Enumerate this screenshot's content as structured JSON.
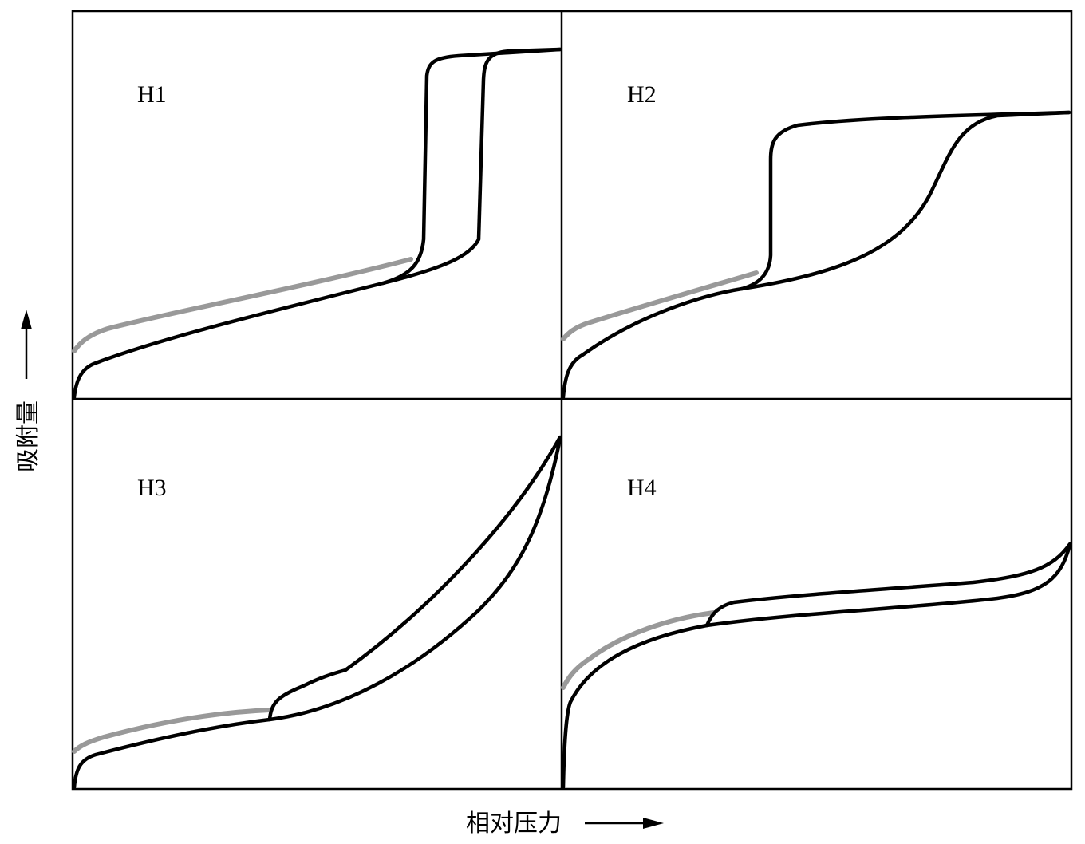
{
  "panels": [
    {
      "id": "h1",
      "label": "H1"
    },
    {
      "id": "h2",
      "label": "H2"
    },
    {
      "id": "h3",
      "label": "H3"
    },
    {
      "id": "h4",
      "label": "H4"
    }
  ],
  "axes": {
    "y_label": "吸附量",
    "x_label": "相对压力"
  },
  "colors": {
    "curve": "#000000",
    "extension_curve": "#999999",
    "frame": "#000000",
    "background": "#ffffff"
  }
}
